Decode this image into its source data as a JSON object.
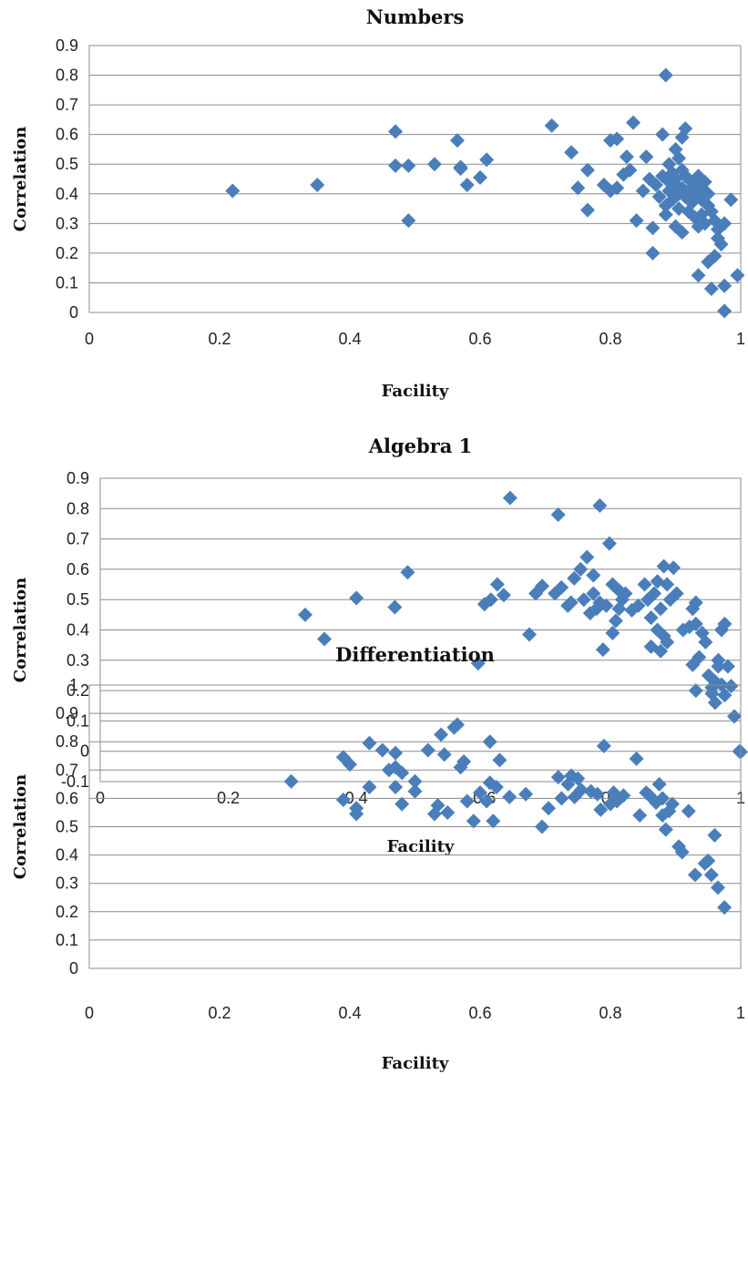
{
  "marker_color": "#4a7ebb",
  "chart_data": [
    {
      "type": "scatter",
      "title": "Numbers",
      "xlabel": "Facility",
      "ylabel": "Correlation",
      "xlim": [
        0,
        1
      ],
      "ylim": [
        0,
        0.9
      ],
      "xticks": [
        "0",
        "0.2",
        "0.4",
        "0.6",
        "0.8",
        "1"
      ],
      "yticks": [
        "0",
        "0.1",
        "0.2",
        "0.3",
        "0.4",
        "0.5",
        "0.6",
        "0.7",
        "0.8",
        "0.9"
      ],
      "grid": true,
      "points": [
        [
          0.22,
          0.41
        ],
        [
          0.35,
          0.43
        ],
        [
          0.47,
          0.61
        ],
        [
          0.47,
          0.495
        ],
        [
          0.49,
          0.495
        ],
        [
          0.49,
          0.31
        ],
        [
          0.53,
          0.5
        ],
        [
          0.565,
          0.58
        ],
        [
          0.57,
          0.485
        ],
        [
          0.57,
          0.49
        ],
        [
          0.58,
          0.43
        ],
        [
          0.6,
          0.455
        ],
        [
          0.61,
          0.515
        ],
        [
          0.71,
          0.63
        ],
        [
          0.74,
          0.54
        ],
        [
          0.75,
          0.42
        ],
        [
          0.765,
          0.48
        ],
        [
          0.765,
          0.345
        ],
        [
          0.79,
          0.43
        ],
        [
          0.8,
          0.58
        ],
        [
          0.8,
          0.41
        ],
        [
          0.81,
          0.42
        ],
        [
          0.81,
          0.585
        ],
        [
          0.82,
          0.465
        ],
        [
          0.825,
          0.525
        ],
        [
          0.83,
          0.48
        ],
        [
          0.835,
          0.64
        ],
        [
          0.84,
          0.31
        ],
        [
          0.85,
          0.41
        ],
        [
          0.855,
          0.525
        ],
        [
          0.86,
          0.45
        ],
        [
          0.865,
          0.2
        ],
        [
          0.865,
          0.285
        ],
        [
          0.87,
          0.43
        ],
        [
          0.875,
          0.39
        ],
        [
          0.88,
          0.46
        ],
        [
          0.88,
          0.6
        ],
        [
          0.885,
          0.8
        ],
        [
          0.885,
          0.36
        ],
        [
          0.885,
          0.33
        ],
        [
          0.89,
          0.5
        ],
        [
          0.89,
          0.44
        ],
        [
          0.89,
          0.41
        ],
        [
          0.895,
          0.47
        ],
        [
          0.895,
          0.38
        ],
        [
          0.9,
          0.55
        ],
        [
          0.9,
          0.45
        ],
        [
          0.9,
          0.43
        ],
        [
          0.9,
          0.29
        ],
        [
          0.905,
          0.52
        ],
        [
          0.905,
          0.4
        ],
        [
          0.905,
          0.35
        ],
        [
          0.91,
          0.59
        ],
        [
          0.91,
          0.48
        ],
        [
          0.91,
          0.42
        ],
        [
          0.91,
          0.27
        ],
        [
          0.915,
          0.62
        ],
        [
          0.915,
          0.46
        ],
        [
          0.915,
          0.39
        ],
        [
          0.92,
          0.45
        ],
        [
          0.92,
          0.41
        ],
        [
          0.92,
          0.34
        ],
        [
          0.925,
          0.44
        ],
        [
          0.925,
          0.37
        ],
        [
          0.93,
          0.43
        ],
        [
          0.93,
          0.4
        ],
        [
          0.93,
          0.32
        ],
        [
          0.935,
          0.46
        ],
        [
          0.935,
          0.29
        ],
        [
          0.935,
          0.125
        ],
        [
          0.94,
          0.42
        ],
        [
          0.94,
          0.38
        ],
        [
          0.94,
          0.33
        ],
        [
          0.945,
          0.44
        ],
        [
          0.945,
          0.3
        ],
        [
          0.95,
          0.4
        ],
        [
          0.95,
          0.36
        ],
        [
          0.95,
          0.17
        ],
        [
          0.955,
          0.34
        ],
        [
          0.955,
          0.08
        ],
        [
          0.96,
          0.31
        ],
        [
          0.96,
          0.19
        ],
        [
          0.965,
          0.28
        ],
        [
          0.965,
          0.25
        ],
        [
          0.97,
          0.23
        ],
        [
          0.975,
          0.3
        ],
        [
          0.975,
          0.09
        ],
        [
          0.975,
          0.005
        ],
        [
          0.985,
          0.38
        ],
        [
          0.995,
          0.125
        ]
      ]
    },
    {
      "type": "scatter",
      "title": "Algebra 1",
      "xlabel": "Facility",
      "ylabel": "Correlation",
      "xlim": [
        0,
        1
      ],
      "ylim": [
        -0.1,
        0.9
      ],
      "xticks": [
        "0",
        "0.2",
        "0.4",
        "0.6",
        "0.8",
        "1"
      ],
      "yticks": [
        "-0.1",
        "0",
        "0.1",
        "0.2",
        "0.3",
        "0.4",
        "0.5",
        "0.6",
        "0.7",
        "0.8",
        "0.9"
      ],
      "grid": true,
      "points": [
        [
          0.32,
          0.45
        ],
        [
          0.35,
          0.37
        ],
        [
          0.4,
          0.505
        ],
        [
          0.46,
          0.475
        ],
        [
          0.48,
          0.59
        ],
        [
          0.59,
          0.29
        ],
        [
          0.6,
          0.485
        ],
        [
          0.61,
          0.5
        ],
        [
          0.62,
          0.55
        ],
        [
          0.63,
          0.515
        ],
        [
          0.64,
          0.835
        ],
        [
          0.67,
          0.385
        ],
        [
          0.68,
          0.52
        ],
        [
          0.69,
          0.545
        ],
        [
          0.71,
          0.52
        ],
        [
          0.715,
          0.78
        ],
        [
          0.72,
          0.54
        ],
        [
          0.73,
          0.48
        ],
        [
          0.735,
          0.49
        ],
        [
          0.74,
          0.57
        ],
        [
          0.75,
          0.6
        ],
        [
          0.755,
          0.5
        ],
        [
          0.76,
          0.64
        ],
        [
          0.765,
          0.455
        ],
        [
          0.77,
          0.58
        ],
        [
          0.77,
          0.52
        ],
        [
          0.775,
          0.47
        ],
        [
          0.78,
          0.81
        ],
        [
          0.78,
          0.49
        ],
        [
          0.785,
          0.335
        ],
        [
          0.79,
          0.48
        ],
        [
          0.795,
          0.685
        ],
        [
          0.8,
          0.55
        ],
        [
          0.8,
          0.39
        ],
        [
          0.805,
          0.43
        ],
        [
          0.81,
          0.53
        ],
        [
          0.81,
          0.47
        ],
        [
          0.815,
          0.5
        ],
        [
          0.82,
          0.52
        ],
        [
          0.83,
          0.465
        ],
        [
          0.84,
          0.48
        ],
        [
          0.85,
          0.55
        ],
        [
          0.855,
          0.5
        ],
        [
          0.86,
          0.44
        ],
        [
          0.86,
          0.345
        ],
        [
          0.865,
          0.52
        ],
        [
          0.87,
          0.56
        ],
        [
          0.87,
          0.4
        ],
        [
          0.875,
          0.47
        ],
        [
          0.875,
          0.33
        ],
        [
          0.88,
          0.61
        ],
        [
          0.88,
          0.38
        ],
        [
          0.885,
          0.55
        ],
        [
          0.885,
          0.36
        ],
        [
          0.89,
          0.5
        ],
        [
          0.895,
          0.605
        ],
        [
          0.9,
          0.52
        ],
        [
          0.91,
          0.4
        ],
        [
          0.92,
          0.41
        ],
        [
          0.925,
          0.47
        ],
        [
          0.925,
          0.285
        ],
        [
          0.93,
          0.49
        ],
        [
          0.93,
          0.42
        ],
        [
          0.93,
          0.2
        ],
        [
          0.935,
          0.31
        ],
        [
          0.94,
          0.39
        ],
        [
          0.945,
          0.36
        ],
        [
          0.95,
          0.25
        ],
        [
          0.955,
          0.21
        ],
        [
          0.955,
          0.19
        ],
        [
          0.96,
          0.23
        ],
        [
          0.96,
          0.16
        ],
        [
          0.965,
          0.28
        ],
        [
          0.965,
          0.3
        ],
        [
          0.97,
          0.4
        ],
        [
          0.97,
          0.22
        ],
        [
          0.975,
          0.42
        ],
        [
          0.975,
          0.185
        ],
        [
          0.98,
          0.28
        ],
        [
          0.985,
          0.215
        ],
        [
          0.99,
          0.115
        ],
        [
          0.998,
          0.0
        ],
        [
          1.0,
          -0.002
        ]
      ]
    },
    {
      "type": "scatter",
      "title": "Differentiation",
      "xlabel": "Facility",
      "ylabel": "Correlation",
      "xlim": [
        0,
        1
      ],
      "ylim": [
        0,
        1
      ],
      "xticks": [
        "0",
        "0.2",
        "0.4",
        "0.6",
        "0.8",
        "1"
      ],
      "yticks": [
        "0",
        "0.1",
        "0.2",
        "0.3",
        "0.4",
        "0.5",
        "0.6",
        "0.7",
        "0.8",
        "0.9",
        "1"
      ],
      "grid": true,
      "points": [
        [
          0.31,
          0.66
        ],
        [
          0.39,
          0.745
        ],
        [
          0.39,
          0.595
        ],
        [
          0.4,
          0.72
        ],
        [
          0.41,
          0.545
        ],
        [
          0.41,
          0.565
        ],
        [
          0.43,
          0.795
        ],
        [
          0.43,
          0.64
        ],
        [
          0.45,
          0.77
        ],
        [
          0.46,
          0.7
        ],
        [
          0.47,
          0.76
        ],
        [
          0.47,
          0.71
        ],
        [
          0.47,
          0.64
        ],
        [
          0.48,
          0.69
        ],
        [
          0.48,
          0.58
        ],
        [
          0.5,
          0.66
        ],
        [
          0.5,
          0.625
        ],
        [
          0.52,
          0.77
        ],
        [
          0.53,
          0.545
        ],
        [
          0.535,
          0.575
        ],
        [
          0.54,
          0.825
        ],
        [
          0.545,
          0.755
        ],
        [
          0.55,
          0.55
        ],
        [
          0.56,
          0.85
        ],
        [
          0.565,
          0.86
        ],
        [
          0.57,
          0.71
        ],
        [
          0.575,
          0.73
        ],
        [
          0.58,
          0.59
        ],
        [
          0.59,
          0.52
        ],
        [
          0.6,
          0.62
        ],
        [
          0.61,
          0.59
        ],
        [
          0.615,
          0.8
        ],
        [
          0.615,
          0.655
        ],
        [
          0.62,
          0.52
        ],
        [
          0.625,
          0.64
        ],
        [
          0.63,
          0.735
        ],
        [
          0.645,
          0.605
        ],
        [
          0.67,
          0.615
        ],
        [
          0.695,
          0.5
        ],
        [
          0.705,
          0.565
        ],
        [
          0.72,
          0.675
        ],
        [
          0.725,
          0.6
        ],
        [
          0.735,
          0.65
        ],
        [
          0.74,
          0.68
        ],
        [
          0.745,
          0.605
        ],
        [
          0.75,
          0.67
        ],
        [
          0.755,
          0.63
        ],
        [
          0.77,
          0.625
        ],
        [
          0.78,
          0.615
        ],
        [
          0.785,
          0.56
        ],
        [
          0.79,
          0.785
        ],
        [
          0.8,
          0.58
        ],
        [
          0.805,
          0.62
        ],
        [
          0.81,
          0.59
        ],
        [
          0.82,
          0.61
        ],
        [
          0.84,
          0.74
        ],
        [
          0.845,
          0.54
        ],
        [
          0.855,
          0.62
        ],
        [
          0.86,
          0.61
        ],
        [
          0.87,
          0.585
        ],
        [
          0.875,
          0.65
        ],
        [
          0.88,
          0.6
        ],
        [
          0.88,
          0.54
        ],
        [
          0.885,
          0.49
        ],
        [
          0.89,
          0.555
        ],
        [
          0.895,
          0.58
        ],
        [
          0.905,
          0.43
        ],
        [
          0.91,
          0.41
        ],
        [
          0.92,
          0.555
        ],
        [
          0.93,
          0.33
        ],
        [
          0.945,
          0.37
        ],
        [
          0.95,
          0.38
        ],
        [
          0.955,
          0.33
        ],
        [
          0.96,
          0.47
        ],
        [
          0.965,
          0.285
        ],
        [
          0.975,
          0.215
        ]
      ]
    }
  ]
}
